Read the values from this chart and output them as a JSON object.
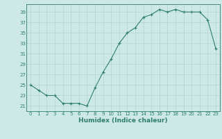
{
  "x": [
    0,
    1,
    2,
    3,
    4,
    5,
    6,
    7,
    8,
    9,
    10,
    11,
    12,
    13,
    14,
    15,
    16,
    17,
    18,
    19,
    20,
    21,
    22,
    23
  ],
  "y": [
    25,
    24,
    23,
    23,
    21.5,
    21.5,
    21.5,
    21,
    24.5,
    27.5,
    30,
    33,
    35,
    36,
    38,
    38.5,
    39.5,
    39,
    39.5,
    39,
    39,
    39,
    37.5,
    32
  ],
  "xlabel": "Humidex (Indice chaleur)",
  "yticks": [
    21,
    23,
    25,
    27,
    29,
    31,
    33,
    35,
    37,
    39
  ],
  "xticks": [
    0,
    1,
    2,
    3,
    4,
    5,
    6,
    7,
    8,
    9,
    10,
    11,
    12,
    13,
    14,
    15,
    16,
    17,
    18,
    19,
    20,
    21,
    22,
    23
  ],
  "xlim": [
    -0.5,
    23.5
  ],
  "ylim": [
    20.0,
    40.5
  ],
  "line_color": "#2e7d6e",
  "marker": "+",
  "bg_color": "#cce9e5",
  "grid_color": "#b8d8d4",
  "label_color": "#2e7d6e",
  "tick_fontsize": 5.0,
  "xlabel_fontsize": 6.5
}
